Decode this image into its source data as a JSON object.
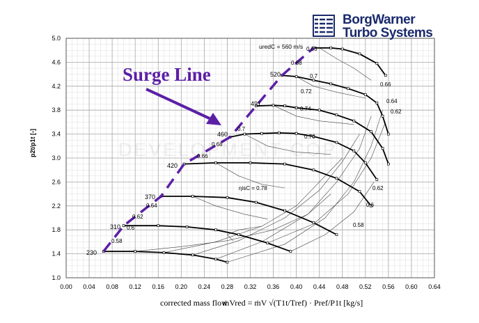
{
  "logo": {
    "line1": "BorgWarner",
    "line2": "Turbo Systems"
  },
  "watermark": "DEVELOPMENT COPY",
  "surge_label": "Surge Line",
  "colors": {
    "surge": "#5b1fa6",
    "logo": "#1a2a6c",
    "grid": "#b0b0b0"
  },
  "chart_data": {
    "type": "line",
    "xlabel": "corrected mass flow",
    "xformula": "ṁVred = ṁV √(T1t/Tref) · Pref/P1t  [kg/s]",
    "ylabel": "p2t/p1t [-]",
    "xlim": [
      0.0,
      0.64
    ],
    "ylim": [
      1.0,
      5.0
    ],
    "xticks": [
      "0.00",
      "0.04",
      "0.08",
      "0.12",
      "0.16",
      "0.20",
      "0.24",
      "0.28",
      "0.32",
      "0.36",
      "0.40",
      "0.44",
      "0.48",
      "0.52",
      "0.56",
      "0.60",
      "0.64"
    ],
    "yticks": [
      "1.0",
      "1.4",
      "1.8",
      "2.2",
      "2.6",
      "3.0",
      "3.4",
      "3.8",
      "4.2",
      "4.6",
      "5.0"
    ],
    "grid": true,
    "speed_prefix": "uredC = ",
    "speed_unit": "m/s",
    "speed_lines": [
      {
        "label": "230",
        "points": [
          [
            0.065,
            1.44
          ],
          [
            0.12,
            1.44
          ],
          [
            0.17,
            1.42
          ],
          [
            0.22,
            1.38
          ],
          [
            0.26,
            1.31
          ],
          [
            0.28,
            1.26
          ]
        ]
      },
      {
        "label": "310",
        "points": [
          [
            0.1,
            1.87
          ],
          [
            0.16,
            1.87
          ],
          [
            0.21,
            1.85
          ],
          [
            0.26,
            1.8
          ],
          [
            0.3,
            1.72
          ],
          [
            0.35,
            1.58
          ],
          [
            0.39,
            1.44
          ]
        ]
      },
      {
        "label": "370",
        "points": [
          [
            0.165,
            2.36
          ],
          [
            0.22,
            2.36
          ],
          [
            0.28,
            2.34
          ],
          [
            0.33,
            2.26
          ],
          [
            0.38,
            2.12
          ],
          [
            0.43,
            1.92
          ],
          [
            0.47,
            1.72
          ]
        ]
      },
      {
        "label": "420",
        "points": [
          [
            0.205,
            2.9
          ],
          [
            0.26,
            2.92
          ],
          [
            0.32,
            2.92
          ],
          [
            0.38,
            2.9
          ],
          [
            0.43,
            2.8
          ],
          [
            0.47,
            2.66
          ],
          [
            0.51,
            2.44
          ],
          [
            0.53,
            2.2
          ]
        ]
      },
      {
        "label": "460",
        "points": [
          [
            0.285,
            3.35
          ],
          [
            0.31,
            3.4
          ],
          [
            0.34,
            3.41
          ],
          [
            0.37,
            3.42
          ],
          [
            0.4,
            3.41
          ]
        ]
      },
      {
        "label": "460b",
        "points": [
          [
            0.4,
            3.41
          ],
          [
            0.43,
            3.36
          ],
          [
            0.47,
            3.26
          ],
          [
            0.5,
            3.12
          ],
          [
            0.52,
            2.92
          ],
          [
            0.54,
            2.64
          ]
        ]
      },
      {
        "label": "491",
        "points": [
          [
            0.33,
            3.87
          ],
          [
            0.36,
            3.88
          ],
          [
            0.38,
            3.87
          ],
          [
            0.4,
            3.84
          ]
        ]
      },
      {
        "label": "491b",
        "points": [
          [
            0.4,
            3.84
          ],
          [
            0.44,
            3.8
          ],
          [
            0.47,
            3.72
          ],
          [
            0.5,
            3.62
          ],
          [
            0.53,
            3.44
          ],
          [
            0.55,
            3.16
          ],
          [
            0.56,
            2.9
          ]
        ]
      },
      {
        "label": "520",
        "points": [
          [
            0.375,
            4.38
          ],
          [
            0.4,
            4.36
          ],
          [
            0.43,
            4.3
          ],
          [
            0.46,
            4.24
          ],
          [
            0.49,
            4.16
          ],
          [
            0.52,
            4.06
          ],
          [
            0.54,
            3.92
          ],
          [
            0.55,
            3.7
          ],
          [
            0.56,
            3.4
          ]
        ]
      },
      {
        "label": "560",
        "points": [
          [
            0.43,
            4.84
          ],
          [
            0.46,
            4.84
          ],
          [
            0.48,
            4.82
          ],
          [
            0.51,
            4.74
          ],
          [
            0.54,
            4.58
          ],
          [
            0.555,
            4.38
          ]
        ]
      }
    ],
    "speed_label_text": [
      "230",
      "310",
      "370",
      "420",
      "460",
      "491",
      "520",
      "560"
    ],
    "efficiency_labels": [
      "0.58",
      "0.6",
      "0.62",
      "0.64",
      "0.66",
      "0.68",
      "0.7",
      "0.72",
      "0.74",
      "0.76",
      "0.78",
      "0.6",
      "0.62",
      "0.64",
      "0.66",
      "0.68",
      "0.7"
    ],
    "eff_prefix": "ηisC = ",
    "surge_line": [
      [
        0.065,
        1.44
      ],
      [
        0.1,
        1.87
      ],
      [
        0.165,
        2.36
      ],
      [
        0.205,
        2.9
      ],
      [
        0.285,
        3.35
      ],
      [
        0.33,
        3.87
      ],
      [
        0.375,
        4.38
      ],
      [
        0.43,
        4.84
      ]
    ]
  }
}
